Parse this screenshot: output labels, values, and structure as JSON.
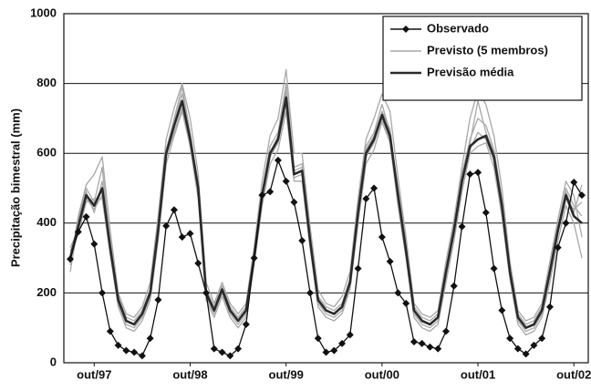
{
  "chart_data": {
    "type": "line",
    "y_label": "Precipitação bimestral (mm)",
    "categories": [
      null,
      null,
      null,
      "out/97",
      null,
      null,
      null,
      null,
      null,
      null,
      null,
      null,
      null,
      null,
      null,
      "out/98",
      null,
      null,
      null,
      null,
      null,
      null,
      null,
      null,
      null,
      null,
      null,
      "out/99",
      null,
      null,
      null,
      null,
      null,
      null,
      null,
      null,
      null,
      null,
      null,
      "out/00",
      null,
      null,
      null,
      null,
      null,
      null,
      null,
      null,
      null,
      null,
      null,
      "out/01",
      null,
      null,
      null,
      null,
      null,
      null,
      null,
      null,
      null,
      null,
      null,
      "out/02",
      null
    ],
    "ylim": [
      0,
      1000
    ],
    "yticks": [
      0,
      200,
      400,
      600,
      800,
      1000
    ],
    "grid": true,
    "legend": "top-right",
    "series": [
      {
        "name": "Observado",
        "color": "#111111",
        "marker": "diamond",
        "values": [
          297,
          375,
          418,
          340,
          200,
          90,
          50,
          35,
          30,
          20,
          70,
          180,
          392,
          438,
          360,
          370,
          285,
          200,
          40,
          30,
          20,
          40,
          110,
          300,
          480,
          490,
          580,
          520,
          460,
          350,
          200,
          70,
          30,
          35,
          55,
          80,
          270,
          470,
          500,
          360,
          290,
          200,
          170,
          60,
          55,
          45,
          40,
          90,
          220,
          390,
          540,
          545,
          430,
          270,
          150,
          70,
          40,
          25,
          50,
          70,
          160,
          330,
          400,
          517,
          480
        ]
      },
      {
        "name": "Previsto (5 membros)",
        "color": "#a8a8a8",
        "members": [
          [
            280,
            420,
            510,
            540,
            590,
            380,
            200,
            140,
            130,
            160,
            230,
            420,
            640,
            730,
            800,
            700,
            540,
            230,
            170,
            230,
            170,
            140,
            170,
            330,
            520,
            650,
            700,
            840,
            600,
            600,
            390,
            210,
            170,
            160,
            190,
            260,
            470,
            640,
            700,
            770,
            720,
            530,
            360,
            170,
            140,
            130,
            150,
            290,
            410,
            560,
            700,
            780,
            740,
            650,
            500,
            290,
            150,
            120,
            130,
            170,
            290,
            410,
            520,
            480,
            360
          ],
          [
            320,
            370,
            460,
            470,
            470,
            310,
            160,
            100,
            90,
            120,
            180,
            350,
            570,
            650,
            720,
            620,
            470,
            180,
            130,
            190,
            130,
            100,
            130,
            280,
            450,
            570,
            610,
            720,
            520,
            520,
            330,
            160,
            130,
            120,
            140,
            210,
            400,
            570,
            610,
            690,
            630,
            450,
            300,
            130,
            100,
            90,
            110,
            230,
            350,
            490,
            600,
            620,
            630,
            560,
            420,
            240,
            110,
            80,
            90,
            130,
            230,
            350,
            450,
            400,
            300
          ],
          [
            260,
            400,
            490,
            430,
            520,
            350,
            190,
            130,
            120,
            150,
            210,
            390,
            610,
            700,
            790,
            660,
            510,
            210,
            160,
            220,
            160,
            130,
            160,
            310,
            490,
            620,
            660,
            800,
            560,
            570,
            370,
            190,
            160,
            150,
            170,
            240,
            450,
            620,
            660,
            740,
            660,
            500,
            340,
            160,
            130,
            120,
            140,
            270,
            390,
            540,
            640,
            700,
            680,
            610,
            470,
            270,
            140,
            110,
            120,
            160,
            270,
            390,
            500,
            450,
            420
          ],
          [
            330,
            380,
            470,
            440,
            480,
            320,
            170,
            110,
            100,
            130,
            190,
            370,
            590,
            660,
            730,
            620,
            490,
            190,
            140,
            200,
            140,
            110,
            140,
            290,
            470,
            590,
            630,
            740,
            530,
            540,
            340,
            170,
            140,
            130,
            150,
            220,
            420,
            590,
            630,
            700,
            640,
            470,
            310,
            140,
            110,
            100,
            120,
            250,
            370,
            510,
            610,
            660,
            640,
            580,
            440,
            250,
            120,
            90,
            100,
            140,
            250,
            370,
            470,
            440,
            460
          ],
          [
            290,
            410,
            500,
            460,
            560,
            340,
            190,
            120,
            110,
            140,
            200,
            390,
            610,
            690,
            770,
            650,
            510,
            200,
            150,
            210,
            150,
            120,
            150,
            300,
            490,
            600,
            650,
            780,
            550,
            560,
            360,
            180,
            150,
            140,
            160,
            230,
            440,
            610,
            650,
            720,
            670,
            490,
            330,
            150,
            120,
            110,
            130,
            260,
            390,
            530,
            630,
            750,
            660,
            600,
            460,
            260,
            130,
            100,
            110,
            150,
            260,
            390,
            490,
            430,
            510
          ]
        ]
      },
      {
        "name": "Previsão média",
        "color": "#2a2a2a",
        "values": [
          300,
          390,
          480,
          450,
          500,
          330,
          180,
          120,
          110,
          140,
          200,
          380,
          600,
          680,
          750,
          640,
          500,
          200,
          150,
          210,
          150,
          120,
          150,
          300,
          480,
          600,
          640,
          760,
          540,
          550,
          350,
          180,
          150,
          140,
          160,
          230,
          430,
          600,
          640,
          710,
          650,
          480,
          320,
          150,
          120,
          110,
          130,
          260,
          380,
          520,
          620,
          640,
          650,
          590,
          450,
          260,
          130,
          100,
          110,
          150,
          260,
          380,
          480,
          420,
          400
        ]
      }
    ]
  }
}
